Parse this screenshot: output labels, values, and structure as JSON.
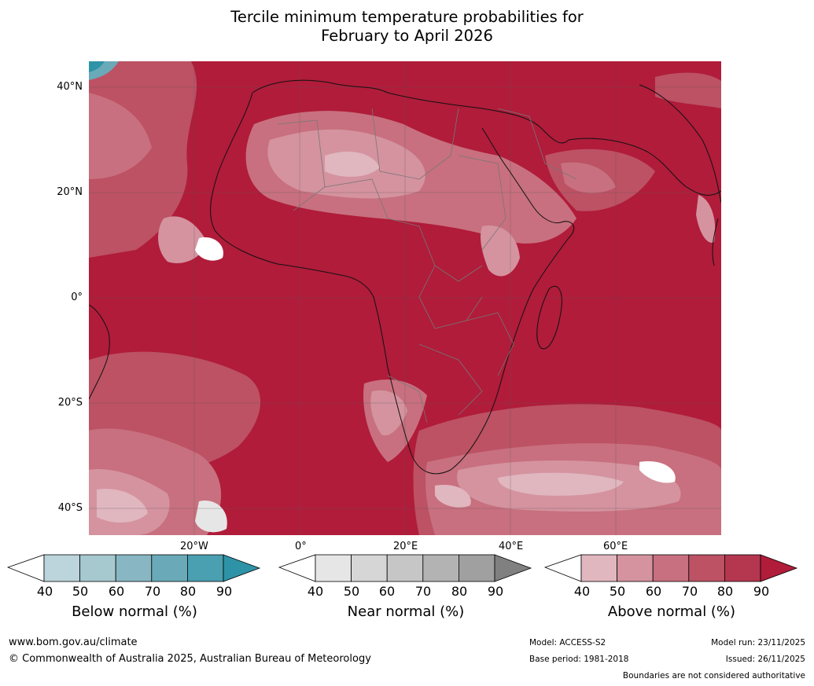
{
  "title": {
    "line1": "Tercile minimum temperature probabilities for",
    "line2": "February to April 2026"
  },
  "map": {
    "latitude_labels": [
      "40°N",
      "20°N",
      "0°",
      "20°S",
      "40°S"
    ],
    "longitude_labels": [
      "20°W",
      "0°",
      "20°E",
      "40°E",
      "60°E"
    ]
  },
  "legends": {
    "ticks": [
      "40",
      "50",
      "60",
      "70",
      "80",
      "90"
    ],
    "below": {
      "title": "Below normal (%)",
      "colors": [
        "#ffffff",
        "#bcd4db",
        "#a6c8cf",
        "#88b7c3",
        "#6aaab8",
        "#4a9fb0",
        "#2e93a6"
      ]
    },
    "near": {
      "title": "Near normal (%)",
      "colors": [
        "#ffffff",
        "#e6e6e6",
        "#d6d6d6",
        "#c6c6c6",
        "#b3b3b3",
        "#a0a0a0",
        "#808080"
      ]
    },
    "above": {
      "title": "Above normal (%)",
      "colors": [
        "#ffffff",
        "#e0b6bf",
        "#d4939f",
        "#c8707f",
        "#bc5264",
        "#b5364f",
        "#b01c3a"
      ]
    }
  },
  "footer": {
    "website": "www.bom.gov.au/climate",
    "copyright": "© Commonwealth of Australia 2025, Australian Bureau of Meteorology",
    "model": "Model: ACCESS-S2",
    "base_period": "Base period: 1981-2018",
    "model_run": "Model run: 23/11/2025",
    "issued": "Issued: 26/11/2025",
    "disclaimer": "Boundaries are not considered authoritative"
  }
}
